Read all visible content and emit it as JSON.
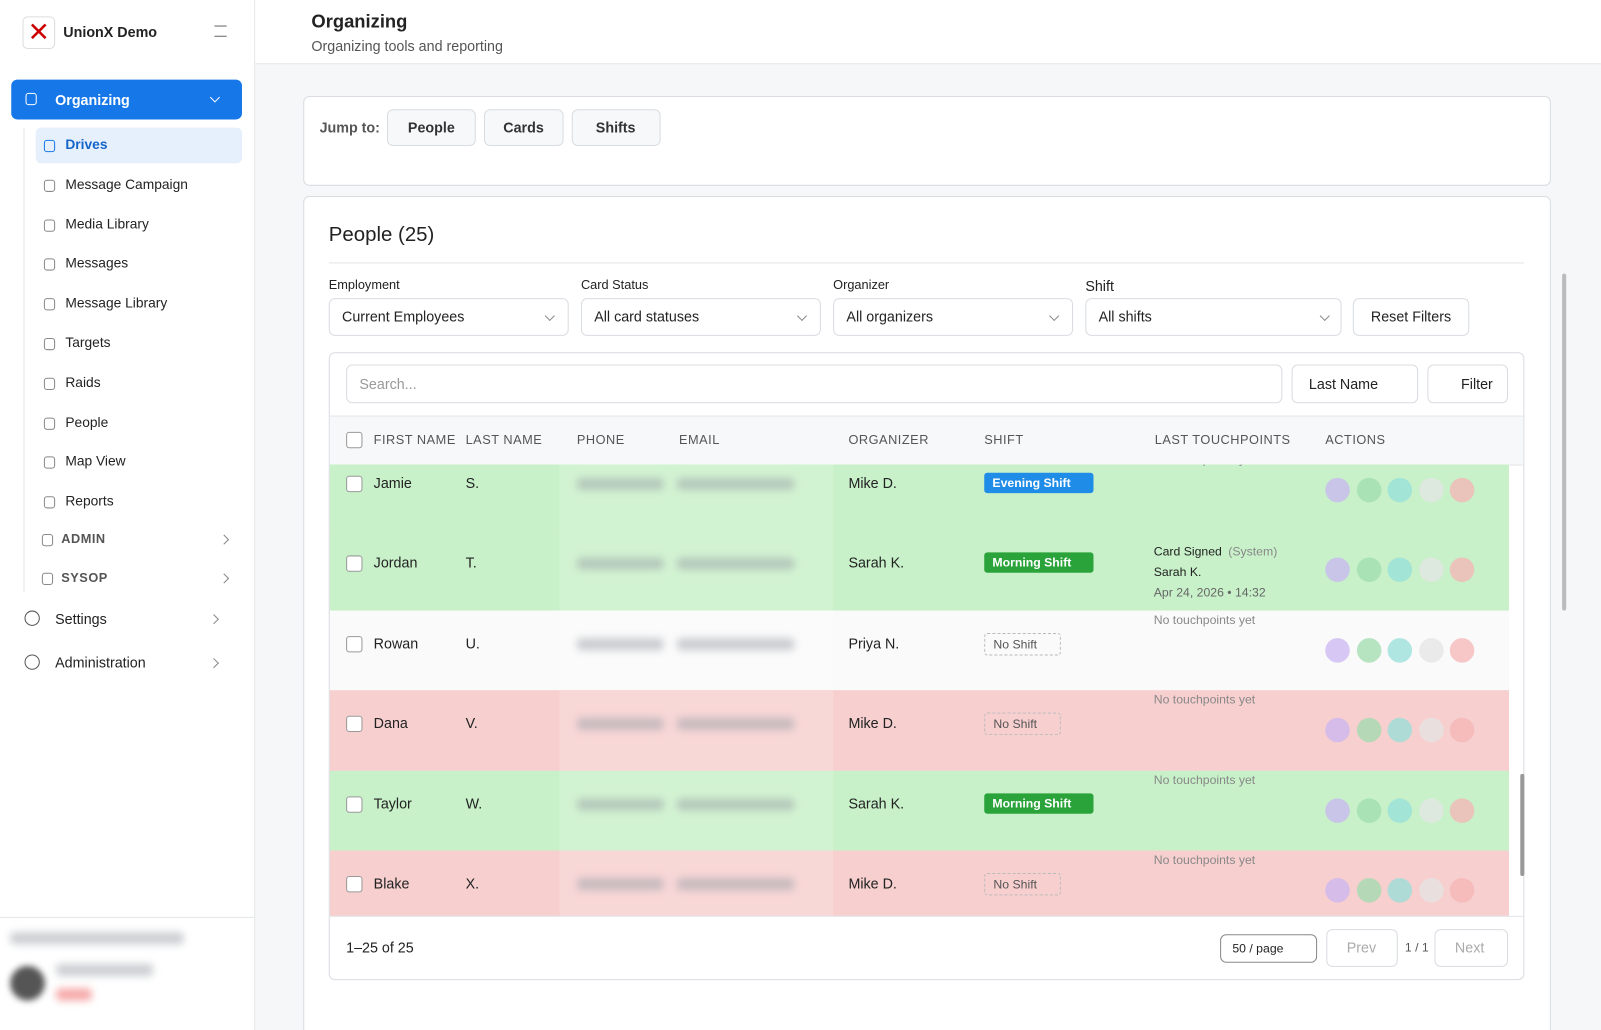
{
  "sidebar": {
    "workspace": "UnionX Demo",
    "active": "Organizing",
    "items": [
      "Drives",
      "Message Campaign",
      "Media Library",
      "Messages",
      "Message Library",
      "Targets",
      "Raids",
      "People",
      "Map View",
      "Reports"
    ],
    "groups": [
      "ADMIN",
      "SYSOP"
    ],
    "bottom": [
      "Settings",
      "Administration"
    ]
  },
  "header": {
    "title": "Organizing",
    "subtitle": "Organizing tools and reporting"
  },
  "jump": {
    "label": "Jump to:",
    "buttons": [
      "People",
      "Cards",
      "Shifts"
    ]
  },
  "people": {
    "title": "People (25)",
    "filters": [
      {
        "label": "Employment",
        "value": "Current Employees"
      },
      {
        "label": "Card Status",
        "value": "All card statuses"
      },
      {
        "label": "Organizer",
        "value": "All organizers"
      },
      {
        "label": "Shift",
        "value": "All shifts"
      }
    ],
    "reset": "Reset Filters",
    "search_placeholder": "Search...",
    "sort": "Last Name",
    "filter": "Filter",
    "columns": [
      "FIRST NAME",
      "LAST NAME",
      "PHONE",
      "EMAIL",
      "ORGANIZER",
      "SHIFT",
      "LAST TOUCHPOINTS",
      "ACTIONS"
    ],
    "rows": [
      {
        "first": "Jamie",
        "last": "S.",
        "organizer": "Mike D.",
        "shift": "Evening Shift",
        "shift_color": "#1f8ce8",
        "color": "#c8f1c9",
        "touchpoint": {
          "note": "No touchpoints yet"
        }
      },
      {
        "first": "Jordan",
        "last": "T.",
        "organizer": "Sarah K.",
        "shift": "Morning Shift",
        "shift_color": "#2aa33b",
        "color": "#c8f1c9",
        "touchpoint": {
          "event": "Card Signed",
          "source": "(System)",
          "by": "Sarah K.",
          "when": "Apr 24, 2026 • 14:32"
        }
      },
      {
        "first": "Rowan",
        "last": "U.",
        "organizer": "Priya N.",
        "shift": "No Shift",
        "shift_color": null,
        "color": "#fafafa",
        "touchpoint": {
          "note": "No touchpoints yet"
        }
      },
      {
        "first": "Dana",
        "last": "V.",
        "organizer": "Mike D.",
        "shift": "No Shift",
        "shift_color": null,
        "color": "#f7cfcf",
        "touchpoint": {
          "note": "No touchpoints yet"
        }
      },
      {
        "first": "Taylor",
        "last": "W.",
        "organizer": "Sarah K.",
        "shift": "Morning Shift",
        "shift_color": "#2aa33b",
        "color": "#c8f1c9",
        "touchpoint": {
          "note": "No touchpoints yet"
        }
      },
      {
        "first": "Blake",
        "last": "X.",
        "organizer": "Mike D.",
        "shift": "No Shift",
        "shift_color": null,
        "color": "#f7cfcf",
        "touchpoint": {
          "note": "No touchpoints yet"
        }
      }
    ],
    "range": "1–25 of 25",
    "page_size": "50 / page",
    "prev": "Prev",
    "page": "1 / 1",
    "next": "Next"
  }
}
